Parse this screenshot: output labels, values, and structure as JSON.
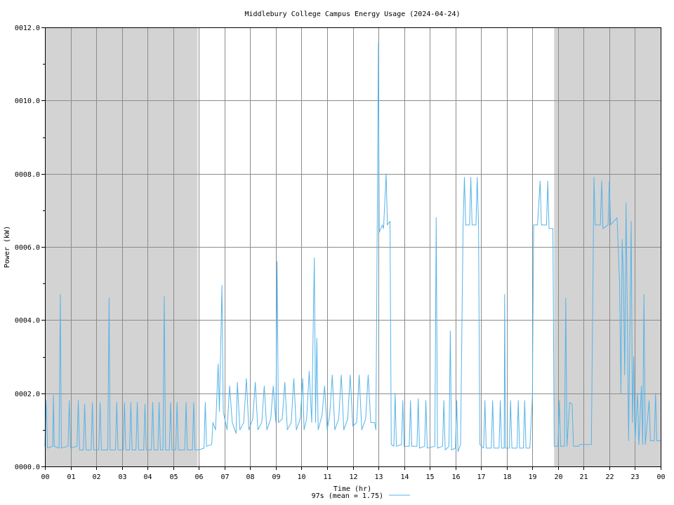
{
  "chart_data": {
    "type": "line",
    "title": "Middlebury College Campus Energy Usage (2024-04-24)",
    "xlabel": "Time (hr)",
    "ylabel": "Power (kW)",
    "xlim": [
      0,
      24
    ],
    "ylim": [
      0,
      12
    ],
    "x_tick_labels": [
      "00",
      "01",
      "02",
      "03",
      "04",
      "05",
      "06",
      "07",
      "08",
      "09",
      "10",
      "11",
      "12",
      "13",
      "14",
      "15",
      "16",
      "17",
      "18",
      "19",
      "20",
      "21",
      "22",
      "23",
      "00"
    ],
    "y_tick_labels": [
      "0000.0",
      "0002.0",
      "0004.0",
      "0006.0",
      "0008.0",
      "0010.0",
      "0012.0"
    ],
    "y_ticks": [
      0,
      2,
      4,
      6,
      8,
      10,
      12
    ],
    "grid": true,
    "night_shading": [
      [
        0,
        5.95
      ],
      [
        19.85,
        24
      ]
    ],
    "legend": {
      "label": "97s (mean = 1.75)",
      "placement": "bottom-center"
    },
    "series": [
      {
        "color": "#56b4e9",
        "points": [
          [
            0.0,
            0.55
          ],
          [
            0.05,
            1.8
          ],
          [
            0.1,
            0.5
          ],
          [
            0.3,
            0.55
          ],
          [
            0.33,
            1.95
          ],
          [
            0.36,
            0.55
          ],
          [
            0.55,
            0.5
          ],
          [
            0.6,
            4.7
          ],
          [
            0.64,
            0.5
          ],
          [
            0.9,
            0.55
          ],
          [
            0.95,
            1.8
          ],
          [
            1.0,
            0.5
          ],
          [
            1.25,
            0.55
          ],
          [
            1.3,
            1.8
          ],
          [
            1.35,
            0.45
          ],
          [
            1.5,
            0.45
          ],
          [
            1.55,
            1.7
          ],
          [
            1.6,
            0.45
          ],
          [
            1.8,
            0.45
          ],
          [
            1.85,
            1.75
          ],
          [
            1.9,
            0.45
          ],
          [
            2.1,
            0.45
          ],
          [
            2.15,
            1.75
          ],
          [
            2.2,
            0.45
          ],
          [
            2.45,
            0.45
          ],
          [
            2.5,
            4.6
          ],
          [
            2.54,
            0.45
          ],
          [
            2.75,
            0.45
          ],
          [
            2.8,
            1.75
          ],
          [
            2.85,
            0.45
          ],
          [
            3.05,
            0.45
          ],
          [
            3.1,
            1.75
          ],
          [
            3.15,
            0.45
          ],
          [
            3.3,
            0.45
          ],
          [
            3.35,
            1.75
          ],
          [
            3.4,
            0.45
          ],
          [
            3.55,
            0.45
          ],
          [
            3.6,
            1.75
          ],
          [
            3.65,
            0.45
          ],
          [
            3.85,
            0.45
          ],
          [
            3.9,
            1.7
          ],
          [
            3.95,
            0.45
          ],
          [
            4.15,
            0.45
          ],
          [
            4.2,
            1.75
          ],
          [
            4.25,
            0.45
          ],
          [
            4.4,
            0.45
          ],
          [
            4.45,
            1.75
          ],
          [
            4.5,
            0.45
          ],
          [
            4.6,
            0.45
          ],
          [
            4.65,
            4.65
          ],
          [
            4.7,
            0.45
          ],
          [
            4.85,
            0.45
          ],
          [
            4.9,
            1.75
          ],
          [
            4.95,
            0.45
          ],
          [
            5.1,
            0.45
          ],
          [
            5.15,
            1.75
          ],
          [
            5.2,
            0.45
          ],
          [
            5.45,
            0.45
          ],
          [
            5.5,
            1.75
          ],
          [
            5.55,
            0.45
          ],
          [
            5.75,
            0.45
          ],
          [
            5.8,
            1.75
          ],
          [
            5.85,
            0.45
          ],
          [
            6.0,
            0.45
          ],
          [
            6.2,
            0.5
          ],
          [
            6.25,
            1.75
          ],
          [
            6.3,
            0.55
          ],
          [
            6.5,
            0.6
          ],
          [
            6.55,
            1.2
          ],
          [
            6.65,
            1.0
          ],
          [
            6.75,
            2.8
          ],
          [
            6.8,
            1.5
          ],
          [
            6.9,
            4.95
          ],
          [
            6.95,
            1.5
          ],
          [
            7.1,
            1.0
          ],
          [
            7.2,
            2.2
          ],
          [
            7.3,
            1.2
          ],
          [
            7.45,
            0.9
          ],
          [
            7.5,
            2.3
          ],
          [
            7.6,
            1.0
          ],
          [
            7.75,
            1.2
          ],
          [
            7.85,
            2.4
          ],
          [
            7.95,
            1.0
          ],
          [
            8.1,
            1.3
          ],
          [
            8.2,
            2.3
          ],
          [
            8.3,
            1.0
          ],
          [
            8.45,
            1.2
          ],
          [
            8.55,
            2.2
          ],
          [
            8.65,
            1.0
          ],
          [
            8.8,
            1.3
          ],
          [
            8.9,
            2.2
          ],
          [
            9.0,
            1.2
          ],
          [
            9.05,
            5.6
          ],
          [
            9.1,
            1.2
          ],
          [
            9.25,
            1.3
          ],
          [
            9.35,
            2.3
          ],
          [
            9.45,
            1.0
          ],
          [
            9.6,
            1.2
          ],
          [
            9.7,
            2.4
          ],
          [
            9.8,
            1.0
          ],
          [
            9.95,
            1.3
          ],
          [
            10.05,
            2.4
          ],
          [
            10.1,
            1.0
          ],
          [
            10.2,
            1.3
          ],
          [
            10.3,
            2.6
          ],
          [
            10.4,
            1.2
          ],
          [
            10.5,
            5.7
          ],
          [
            10.55,
            1.2
          ],
          [
            10.6,
            3.5
          ],
          [
            10.65,
            1.0
          ],
          [
            10.8,
            1.4
          ],
          [
            10.9,
            2.2
          ],
          [
            11.0,
            1.0
          ],
          [
            11.1,
            1.4
          ],
          [
            11.2,
            2.5
          ],
          [
            11.3,
            1.0
          ],
          [
            11.45,
            1.3
          ],
          [
            11.55,
            2.5
          ],
          [
            11.65,
            1.0
          ],
          [
            11.8,
            1.3
          ],
          [
            11.9,
            2.5
          ],
          [
            12.0,
            1.1
          ],
          [
            12.15,
            1.2
          ],
          [
            12.25,
            2.5
          ],
          [
            12.35,
            1.0
          ],
          [
            12.5,
            1.3
          ],
          [
            12.6,
            2.5
          ],
          [
            12.7,
            1.2
          ],
          [
            12.85,
            1.2
          ],
          [
            12.9,
            1.0
          ],
          [
            12.95,
            6.3
          ],
          [
            13.0,
            11.6
          ],
          [
            13.03,
            6.4
          ],
          [
            13.15,
            6.6
          ],
          [
            13.2,
            6.5
          ],
          [
            13.3,
            8.0
          ],
          [
            13.35,
            6.6
          ],
          [
            13.45,
            6.7
          ],
          [
            13.5,
            0.6
          ],
          [
            13.6,
            0.55
          ],
          [
            13.65,
            2.0
          ],
          [
            13.7,
            0.55
          ],
          [
            13.9,
            0.6
          ],
          [
            13.95,
            1.8
          ],
          [
            14.0,
            0.55
          ],
          [
            14.2,
            0.55
          ],
          [
            14.25,
            1.8
          ],
          [
            14.3,
            0.55
          ],
          [
            14.5,
            0.55
          ],
          [
            14.55,
            1.85
          ],
          [
            14.6,
            0.5
          ],
          [
            14.8,
            0.55
          ],
          [
            14.85,
            1.8
          ],
          [
            14.9,
            0.5
          ],
          [
            15.2,
            0.55
          ],
          [
            15.25,
            6.8
          ],
          [
            15.3,
            0.5
          ],
          [
            15.5,
            0.55
          ],
          [
            15.55,
            1.8
          ],
          [
            15.6,
            0.45
          ],
          [
            15.75,
            0.55
          ],
          [
            15.8,
            3.7
          ],
          [
            15.85,
            0.45
          ],
          [
            16.0,
            0.5
          ],
          [
            16.05,
            1.8
          ],
          [
            16.1,
            0.4
          ],
          [
            16.2,
            0.6
          ],
          [
            16.3,
            6.6
          ],
          [
            16.35,
            7.9
          ],
          [
            16.4,
            6.6
          ],
          [
            16.55,
            6.6
          ],
          [
            16.6,
            7.9
          ],
          [
            16.65,
            6.6
          ],
          [
            16.8,
            6.6
          ],
          [
            16.85,
            7.9
          ],
          [
            16.9,
            6.6
          ],
          [
            16.95,
            0.6
          ],
          [
            17.1,
            0.5
          ],
          [
            17.15,
            1.8
          ],
          [
            17.2,
            0.5
          ],
          [
            17.4,
            0.5
          ],
          [
            17.45,
            1.8
          ],
          [
            17.5,
            0.5
          ],
          [
            17.7,
            0.5
          ],
          [
            17.75,
            1.8
          ],
          [
            17.8,
            0.5
          ],
          [
            17.9,
            0.5
          ],
          [
            17.92,
            4.7
          ],
          [
            17.95,
            0.5
          ],
          [
            18.1,
            0.5
          ],
          [
            18.15,
            1.8
          ],
          [
            18.2,
            0.5
          ],
          [
            18.4,
            0.5
          ],
          [
            18.45,
            1.8
          ],
          [
            18.5,
            0.5
          ],
          [
            18.65,
            0.5
          ],
          [
            18.7,
            1.8
          ],
          [
            18.75,
            0.5
          ],
          [
            18.9,
            0.5
          ],
          [
            19.0,
            1.9
          ],
          [
            19.05,
            6.6
          ],
          [
            19.2,
            6.6
          ],
          [
            19.3,
            7.8
          ],
          [
            19.35,
            6.6
          ],
          [
            19.55,
            6.6
          ],
          [
            19.6,
            7.8
          ],
          [
            19.65,
            6.5
          ],
          [
            19.8,
            6.5
          ],
          [
            19.85,
            0.55
          ],
          [
            20.0,
            0.55
          ],
          [
            20.05,
            1.8
          ],
          [
            20.1,
            0.55
          ],
          [
            20.25,
            0.55
          ],
          [
            20.3,
            4.6
          ],
          [
            20.35,
            0.55
          ],
          [
            20.45,
            1.75
          ],
          [
            20.55,
            1.7
          ],
          [
            20.6,
            0.55
          ],
          [
            20.8,
            0.55
          ],
          [
            20.85,
            0.6
          ],
          [
            21.0,
            0.6
          ],
          [
            21.3,
            0.6
          ],
          [
            21.4,
            7.9
          ],
          [
            21.45,
            6.6
          ],
          [
            21.65,
            6.6
          ],
          [
            21.7,
            7.8
          ],
          [
            21.75,
            6.5
          ],
          [
            21.95,
            6.6
          ],
          [
            22.0,
            7.8
          ],
          [
            22.05,
            6.6
          ],
          [
            22.3,
            6.8
          ],
          [
            22.4,
            5.0
          ],
          [
            22.45,
            2.0
          ],
          [
            22.5,
            6.2
          ],
          [
            22.55,
            5.1
          ],
          [
            22.6,
            2.5
          ],
          [
            22.65,
            7.2
          ],
          [
            22.7,
            4.0
          ],
          [
            22.75,
            0.7
          ],
          [
            22.85,
            6.7
          ],
          [
            22.9,
            1.2
          ],
          [
            22.95,
            3.0
          ],
          [
            23.0,
            0.7
          ],
          [
            23.1,
            2.0
          ],
          [
            23.15,
            0.6
          ],
          [
            23.25,
            2.2
          ],
          [
            23.3,
            0.6
          ],
          [
            23.35,
            4.7
          ],
          [
            23.4,
            0.6
          ],
          [
            23.55,
            1.8
          ],
          [
            23.6,
            0.7
          ],
          [
            23.75,
            0.7
          ],
          [
            23.8,
            2.0
          ],
          [
            23.85,
            0.7
          ],
          [
            24.0,
            0.7
          ]
        ]
      }
    ]
  }
}
